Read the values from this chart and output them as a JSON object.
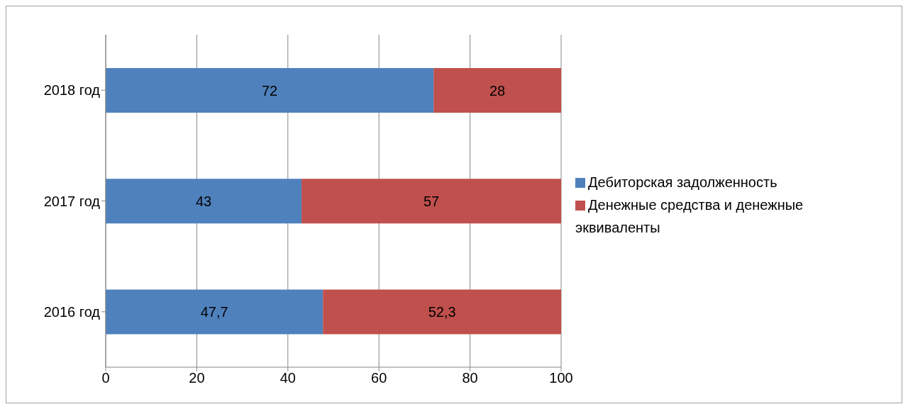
{
  "chart_data": {
    "type": "bar",
    "orientation": "horizontal",
    "stacked": true,
    "categories": [
      "2018 год",
      "2017 год",
      "2016 год"
    ],
    "series": [
      {
        "name": "Дебиторская задолженность",
        "color": "#4f81bd",
        "values": [
          72,
          43,
          47.7
        ],
        "value_labels": [
          "72",
          "43",
          "47,7"
        ]
      },
      {
        "name": "Денежные средства и денежные эквиваленты",
        "color": "#c0504d",
        "values": [
          28,
          57,
          52.3
        ],
        "value_labels": [
          "28",
          "57",
          "52,3"
        ]
      }
    ],
    "xlim": [
      0,
      100
    ],
    "xticks": [
      0,
      20,
      40,
      60,
      80,
      100
    ],
    "grid": "x",
    "legend": "right"
  }
}
